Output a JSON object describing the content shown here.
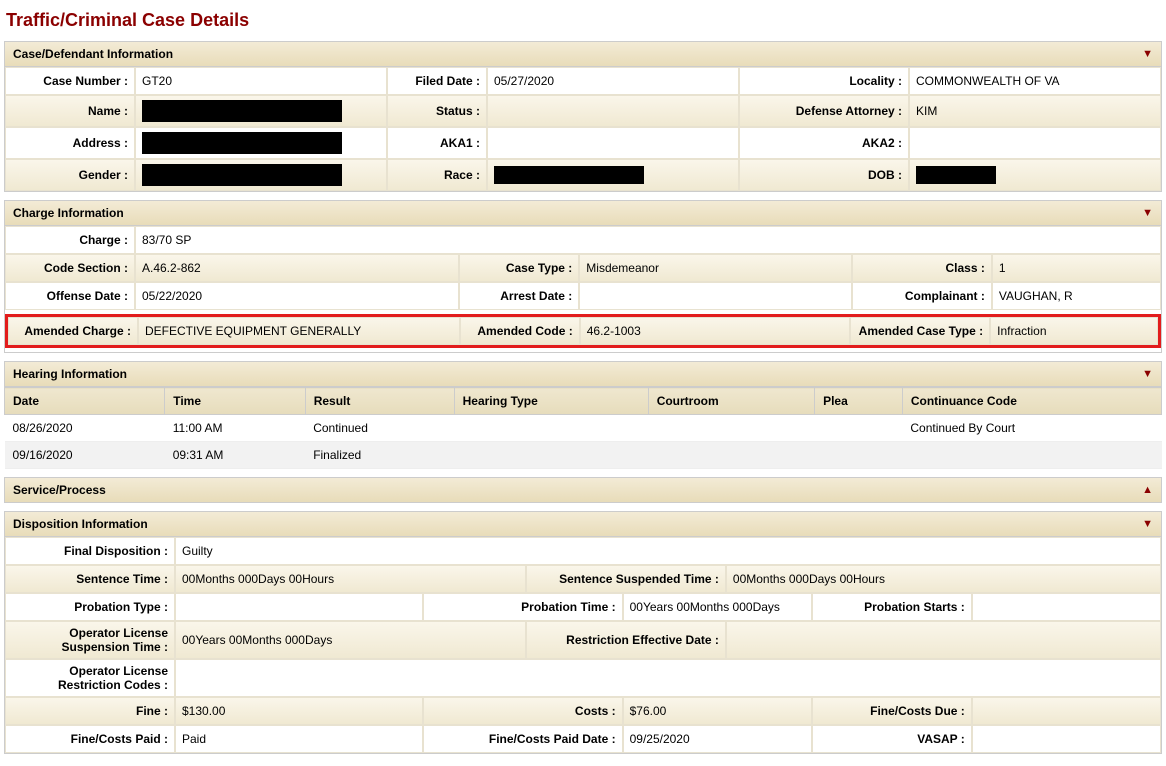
{
  "title": "Traffic/Criminal Case Details",
  "sections": {
    "caseDefendant": {
      "header": "Case/Defendant Information",
      "caseNumber": {
        "label": "Case Number :",
        "value": "GT20",
        "redactedWidth": 110
      },
      "filedDate": {
        "label": "Filed Date :",
        "value": "05/27/2020"
      },
      "locality": {
        "label": "Locality :",
        "value": "COMMONWEALTH OF VA"
      },
      "name": {
        "label": "Name :",
        "redactedWidth": 200
      },
      "status": {
        "label": "Status :",
        "value": ""
      },
      "defenseAttorney": {
        "label": "Defense Attorney :",
        "value": "KIM"
      },
      "address": {
        "label": "Address :",
        "redactedWidth": 200
      },
      "aka1": {
        "label": "AKA1 :",
        "value": ""
      },
      "aka2": {
        "label": "AKA2 :",
        "value": ""
      },
      "gender": {
        "label": "Gender :",
        "redactedWidth": 200
      },
      "race": {
        "label": "Race :",
        "redactedWidth": 150
      },
      "dob": {
        "label": "DOB :",
        "redactedWidth": 80
      }
    },
    "charge": {
      "header": "Charge Information",
      "chargeField": {
        "label": "Charge :",
        "value": "83/70 SP"
      },
      "codeSection": {
        "label": "Code Section :",
        "value": "A.46.2-862"
      },
      "caseType": {
        "label": "Case Type :",
        "value": "Misdemeanor"
      },
      "classField": {
        "label": "Class :",
        "value": "1"
      },
      "offenseDate": {
        "label": "Offense Date :",
        "value": "05/22/2020"
      },
      "arrestDate": {
        "label": "Arrest Date :",
        "value": ""
      },
      "complainant": {
        "label": "Complainant :",
        "value": "VAUGHAN, R"
      },
      "amendedCharge": {
        "label": "Amended Charge :",
        "value": "DEFECTIVE EQUIPMENT GENERALLY"
      },
      "amendedCode": {
        "label": "Amended Code :",
        "value": "46.2-1003"
      },
      "amendedCaseType": {
        "label": "Amended Case Type :",
        "value": "Infraction"
      }
    },
    "hearing": {
      "header": "Hearing Information",
      "columns": [
        "Date",
        "Time",
        "Result",
        "Hearing Type",
        "Courtroom",
        "Plea",
        "Continuance Code"
      ],
      "rows": [
        {
          "date": "08/26/2020",
          "time": "11:00 AM",
          "result": "Continued",
          "hearingType": "",
          "courtroom": "",
          "plea": "",
          "continuance": "Continued By Court"
        },
        {
          "date": "09/16/2020",
          "time": "09:31 AM",
          "result": "Finalized",
          "hearingType": "",
          "courtroom": "",
          "plea": "",
          "continuance": ""
        }
      ]
    },
    "serviceProcess": {
      "header": "Service/Process"
    },
    "disposition": {
      "header": "Disposition Information",
      "finalDisposition": {
        "label": "Final Disposition :",
        "value": "Guilty"
      },
      "sentenceTime": {
        "label": "Sentence Time :",
        "value": "00Months 000Days 00Hours"
      },
      "sentenceSuspendedTime": {
        "label": "Sentence Suspended Time :",
        "value": "00Months 000Days 00Hours"
      },
      "probationType": {
        "label": "Probation Type :",
        "value": ""
      },
      "probationTime": {
        "label": "Probation Time :",
        "value": "00Years 00Months 000Days"
      },
      "probationStarts": {
        "label": "Probation Starts :",
        "value": ""
      },
      "operatorLicenseSuspensionTime": {
        "label": "Operator License Suspension Time :",
        "value": "00Years 00Months 000Days"
      },
      "restrictionEffectiveDate": {
        "label": "Restriction Effective Date :",
        "value": ""
      },
      "operatorLicenseRestrictionCodes": {
        "label": "Operator License Restriction Codes :",
        "value": ""
      },
      "fine": {
        "label": "Fine :",
        "value": "$130.00"
      },
      "costs": {
        "label": "Costs :",
        "value": "$76.00"
      },
      "fineCostsDue": {
        "label": "Fine/Costs Due :",
        "value": ""
      },
      "fineCostsPaid": {
        "label": "Fine/Costs Paid :",
        "value": "Paid"
      },
      "fineCostsPaidDate": {
        "label": "Fine/Costs Paid Date :",
        "value": "09/25/2020"
      },
      "vasap": {
        "label": "VASAP :",
        "value": ""
      }
    }
  }
}
